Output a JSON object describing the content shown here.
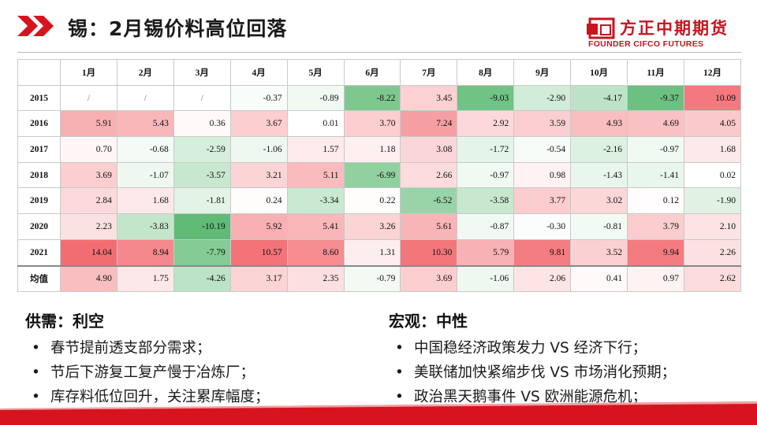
{
  "header": {
    "title": "锡：2月锡价料高位回落",
    "logo_cn": "方正中期期货",
    "logo_en": "FOUNDER CIFCO FUTURES"
  },
  "table": {
    "corner": "",
    "months": [
      "1月",
      "2月",
      "3月",
      "4月",
      "5月",
      "6月",
      "7月",
      "8月",
      "9月",
      "10月",
      "11月",
      "12月"
    ],
    "rows": [
      {
        "label": "2015",
        "cells": [
          "/",
          "/",
          "/",
          "-0.37",
          "-0.89",
          "-8.22",
          "3.45",
          "-9.03",
          "-2.90",
          "-4.17",
          "-9.37",
          "10.09"
        ]
      },
      {
        "label": "2016",
        "cells": [
          "5.91",
          "5.43",
          "0.36",
          "3.67",
          "0.01",
          "3.70",
          "7.24",
          "2.92",
          "3.59",
          "4.93",
          "4.69",
          "4.05"
        ]
      },
      {
        "label": "2017",
        "cells": [
          "0.70",
          "-0.68",
          "-2.59",
          "-1.06",
          "1.57",
          "1.18",
          "3.08",
          "-1.72",
          "-0.54",
          "-2.16",
          "-0.97",
          "1.68"
        ]
      },
      {
        "label": "2018",
        "cells": [
          "3.69",
          "-1.07",
          "-3.57",
          "3.21",
          "5.11",
          "-6.99",
          "2.66",
          "-0.97",
          "0.98",
          "-1.43",
          "-1.41",
          "0.02"
        ]
      },
      {
        "label": "2019",
        "cells": [
          "2.84",
          "1.68",
          "-1.81",
          "0.24",
          "-3.34",
          "0.22",
          "-6.52",
          "-3.58",
          "3.77",
          "3.02",
          "0.12",
          "-1.90"
        ]
      },
      {
        "label": "2020",
        "cells": [
          "2.23",
          "-3.83",
          "-10.19",
          "5.92",
          "5.41",
          "3.26",
          "5.61",
          "-0.87",
          "-0.30",
          "-0.81",
          "3.79",
          "2.10"
        ]
      },
      {
        "label": "2021",
        "cells": [
          "14.04",
          "8.94",
          "-7.79",
          "10.57",
          "8.60",
          "1.31",
          "10.30",
          "5.79",
          "9.81",
          "3.52",
          "9.94",
          "2.26"
        ]
      }
    ],
    "average": {
      "label": "均值",
      "cells": [
        "4.90",
        "1.75",
        "-4.26",
        "3.17",
        "2.35",
        "-0.79",
        "3.69",
        "-1.06",
        "2.06",
        "0.41",
        "0.97",
        "2.62"
      ]
    }
  },
  "colors": {
    "positive": "#f26d72",
    "negative": "#52b66a",
    "neutral": "#ffffff",
    "brand": "#c8141e"
  },
  "left": {
    "heading": "供需：利空",
    "bullet": "•",
    "items": [
      "春节提前透支部分需求；",
      "节后下游复工复产慢于冶炼厂；",
      "库存料低位回升，关注累库幅度；"
    ]
  },
  "right": {
    "heading": "宏观：中性",
    "bullet": "•",
    "items": [
      "中国稳经济政策发力 VS 经济下行；",
      "美联储加快紧缩步伐 VS 市场消化预期；",
      "政治黑天鹅事件 VS 欧洲能源危机；"
    ]
  }
}
